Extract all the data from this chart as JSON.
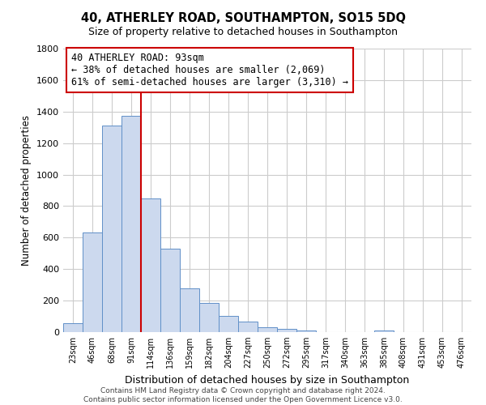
{
  "title": "40, ATHERLEY ROAD, SOUTHAMPTON, SO15 5DQ",
  "subtitle": "Size of property relative to detached houses in Southampton",
  "xlabel": "Distribution of detached houses by size in Southampton",
  "ylabel": "Number of detached properties",
  "bar_labels": [
    "23sqm",
    "46sqm",
    "68sqm",
    "91sqm",
    "114sqm",
    "136sqm",
    "159sqm",
    "182sqm",
    "204sqm",
    "227sqm",
    "250sqm",
    "272sqm",
    "295sqm",
    "317sqm",
    "340sqm",
    "363sqm",
    "385sqm",
    "408sqm",
    "431sqm",
    "453sqm",
    "476sqm"
  ],
  "bar_values": [
    55,
    635,
    1310,
    1375,
    850,
    530,
    280,
    185,
    105,
    68,
    30,
    22,
    10,
    0,
    0,
    0,
    10,
    0,
    0,
    0,
    0
  ],
  "bar_color": "#ccd9ee",
  "bar_edge_color": "#6090c8",
  "vline_x": 3.5,
  "vline_color": "#cc0000",
  "annotation_text": "40 ATHERLEY ROAD: 93sqm\n← 38% of detached houses are smaller (2,069)\n61% of semi-detached houses are larger (3,310) →",
  "annotation_box_edge": "#cc0000",
  "ylim": [
    0,
    1800
  ],
  "yticks": [
    0,
    200,
    400,
    600,
    800,
    1000,
    1200,
    1400,
    1600,
    1800
  ],
  "footer_line1": "Contains HM Land Registry data © Crown copyright and database right 2024.",
  "footer_line2": "Contains public sector information licensed under the Open Government Licence v3.0.",
  "background_color": "#ffffff",
  "grid_color": "#cccccc"
}
